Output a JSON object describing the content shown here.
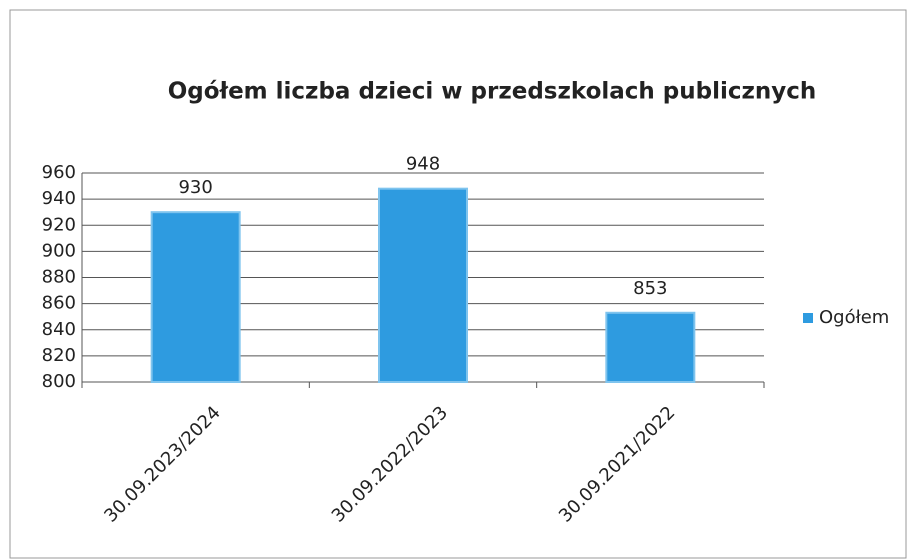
{
  "chart_data": {
    "type": "bar",
    "title": "Ogółem liczba dzieci w przedszkolach publicznych",
    "categories": [
      "30.09.2023/2024",
      "30.09.2022/2023",
      "30.09.2021/2022"
    ],
    "series": [
      {
        "name": "Ogółem",
        "color": "#2e9be0",
        "values": [
          930,
          948,
          853
        ]
      }
    ],
    "ylim": [
      800,
      960
    ],
    "yticks": [
      800,
      820,
      840,
      860,
      880,
      900,
      920,
      940,
      960
    ],
    "grid": true,
    "legend": "right"
  }
}
